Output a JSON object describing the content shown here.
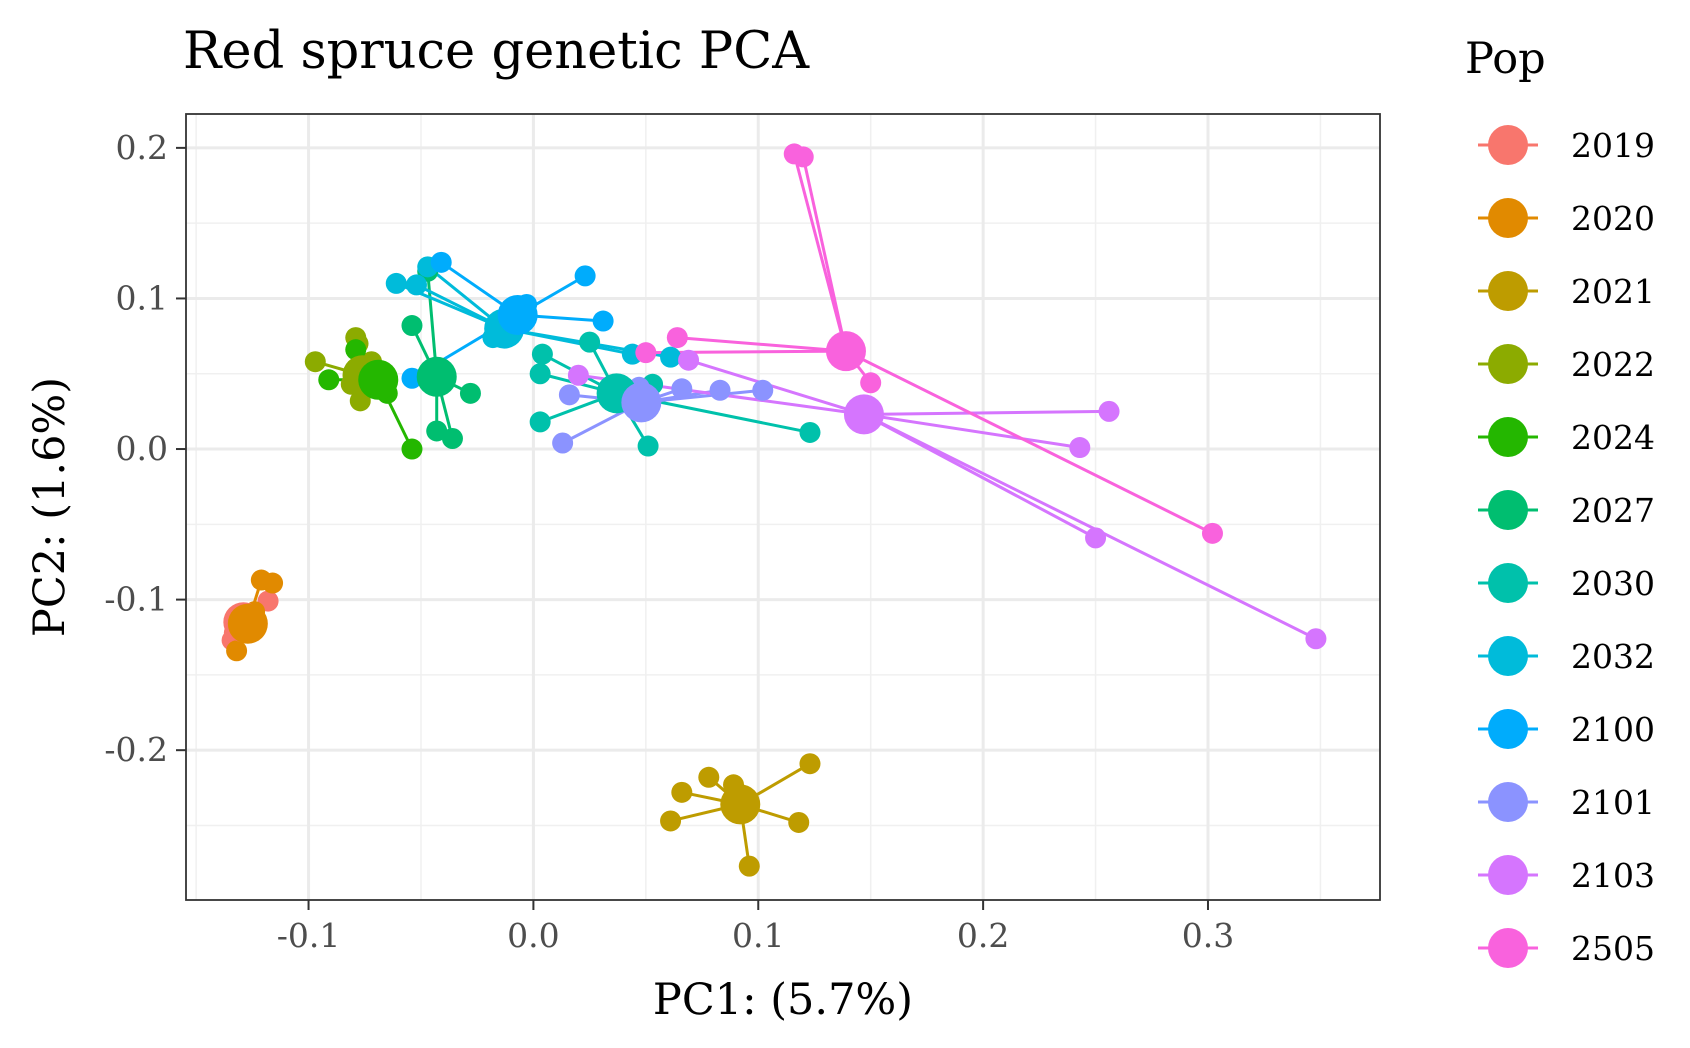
{
  "chart_data": {
    "type": "scatter",
    "title": "Red spruce genetic PCA",
    "xlabel": "PC1: (5.7%)",
    "ylabel": "PC2: (1.6%)",
    "xlim": [
      -0.1545,
      0.3765
    ],
    "ylim": [
      -0.2995,
      0.2225
    ],
    "x_ticks": [
      -0.1,
      0.0,
      0.1,
      0.2,
      0.3
    ],
    "x_tick_labels": [
      "-0.1",
      "0.0",
      "0.1",
      "0.2",
      "0.3"
    ],
    "y_ticks": [
      -0.2,
      -0.1,
      0.0,
      0.1,
      0.2
    ],
    "y_tick_labels": [
      "-0.2",
      "-0.1",
      "0.0",
      "0.1",
      "0.2"
    ],
    "grid": true,
    "legend": {
      "title": "Pop",
      "placement": "right"
    },
    "series": [
      {
        "name": "2019",
        "color": "#F8766D",
        "centroid": [
          -0.129,
          -0.115
        ],
        "points": [
          [
            -0.134,
            -0.127
          ],
          [
            -0.131,
            -0.117
          ],
          [
            -0.118,
            -0.101
          ],
          [
            -0.126,
            -0.11
          ],
          [
            -0.133,
            -0.122
          ]
        ]
      },
      {
        "name": "2020",
        "color": "#E18A00",
        "centroid": [
          -0.127,
          -0.116
        ],
        "points": [
          [
            -0.132,
            -0.134
          ],
          [
            -0.121,
            -0.087
          ],
          [
            -0.116,
            -0.089
          ],
          [
            -0.124,
            -0.108
          ],
          [
            -0.129,
            -0.12
          ]
        ]
      },
      {
        "name": "2021",
        "color": "#BE9C00",
        "centroid": [
          0.092,
          -0.236
        ],
        "points": [
          [
            0.061,
            -0.247
          ],
          [
            0.066,
            -0.228
          ],
          [
            0.078,
            -0.218
          ],
          [
            0.089,
            -0.223
          ],
          [
            0.096,
            -0.277
          ],
          [
            0.118,
            -0.248
          ],
          [
            0.123,
            -0.209
          ]
        ]
      },
      {
        "name": "2022",
        "color": "#8CAB00",
        "centroid": [
          -0.076,
          0.049
        ],
        "points": [
          [
            -0.097,
            0.058
          ],
          [
            -0.079,
            0.074
          ],
          [
            -0.077,
            0.032
          ],
          [
            -0.081,
            0.043
          ],
          [
            -0.072,
            0.058
          ],
          [
            -0.078,
            0.07
          ]
        ]
      },
      {
        "name": "2024",
        "color": "#24B700",
        "centroid": [
          -0.069,
          0.046
        ],
        "points": [
          [
            -0.091,
            0.046
          ],
          [
            -0.054,
            0.0
          ],
          [
            -0.065,
            0.037
          ],
          [
            -0.079,
            0.066
          ]
        ]
      },
      {
        "name": "2027",
        "color": "#00BE70",
        "centroid": [
          -0.043,
          0.048
        ],
        "points": [
          [
            -0.054,
            0.082
          ],
          [
            -0.047,
            0.118
          ],
          [
            -0.043,
            0.012
          ],
          [
            -0.036,
            0.007
          ],
          [
            -0.028,
            0.037
          ],
          [
            -0.046,
            0.049
          ]
        ]
      },
      {
        "name": "2030",
        "color": "#00C1AB",
        "centroid": [
          0.037,
          0.037
        ],
        "points": [
          [
            0.004,
            0.063
          ],
          [
            0.003,
            0.05
          ],
          [
            0.003,
            0.018
          ],
          [
            0.025,
            0.071
          ],
          [
            0.051,
            0.002
          ],
          [
            0.053,
            0.043
          ],
          [
            0.123,
            0.011
          ],
          [
            0.037,
            0.037
          ]
        ]
      },
      {
        "name": "2032",
        "color": "#00BBDA",
        "centroid": [
          -0.013,
          0.08
        ],
        "points": [
          [
            -0.061,
            0.11
          ],
          [
            -0.052,
            0.109
          ],
          [
            -0.047,
            0.121
          ],
          [
            0.044,
            0.063
          ],
          [
            0.061,
            0.061
          ],
          [
            -0.018,
            0.074
          ]
        ]
      },
      {
        "name": "2100",
        "color": "#00ACFC",
        "centroid": [
          -0.007,
          0.089
        ],
        "points": [
          [
            -0.041,
            0.124
          ],
          [
            -0.054,
            0.047
          ],
          [
            0.023,
            0.115
          ],
          [
            0.031,
            0.085
          ],
          [
            -0.003,
            0.096
          ]
        ]
      },
      {
        "name": "2101",
        "color": "#8B93FF",
        "centroid": [
          0.048,
          0.031
        ],
        "points": [
          [
            0.013,
            0.004
          ],
          [
            0.016,
            0.036
          ],
          [
            0.047,
            0.041
          ],
          [
            0.066,
            0.04
          ],
          [
            0.083,
            0.039
          ],
          [
            0.102,
            0.039
          ]
        ]
      },
      {
        "name": "2103",
        "color": "#D575FE",
        "centroid": [
          0.147,
          0.023
        ],
        "points": [
          [
            0.02,
            0.049
          ],
          [
            0.243,
            0.001
          ],
          [
            0.256,
            0.025
          ],
          [
            0.25,
            -0.059
          ],
          [
            0.348,
            -0.126
          ],
          [
            0.069,
            0.059
          ]
        ]
      },
      {
        "name": "2505",
        "color": "#F962DD",
        "centroid": [
          0.139,
          0.065
        ],
        "points": [
          [
            0.116,
            0.196
          ],
          [
            0.12,
            0.194
          ],
          [
            0.05,
            0.064
          ],
          [
            0.064,
            0.074
          ],
          [
            0.15,
            0.044
          ],
          [
            0.302,
            -0.056
          ],
          [
            0.136,
            0.063
          ]
        ]
      }
    ]
  },
  "legend_keys": [
    "2019",
    "2020",
    "2021",
    "2022",
    "2024",
    "2027",
    "2030",
    "2032",
    "2100",
    "2101",
    "2103",
    "2505"
  ]
}
